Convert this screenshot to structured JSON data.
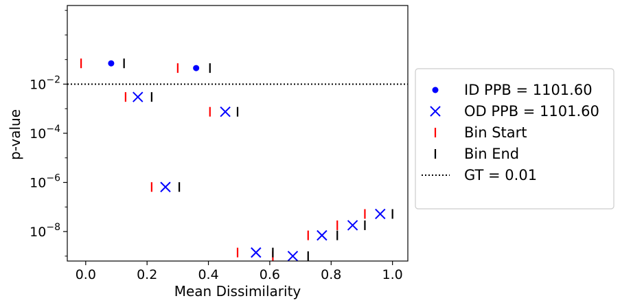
{
  "chart_data": {
    "type": "scatter",
    "title": "",
    "xlabel": "Mean Dissimilarity",
    "ylabel": "p-value",
    "xlim": [
      -0.06,
      1.05
    ],
    "ylim_log10": [
      -9.2,
      1.2
    ],
    "y_scale": "log",
    "x_ticks": [
      {
        "value": 0.0,
        "label": "0.0"
      },
      {
        "value": 0.2,
        "label": "0.2"
      },
      {
        "value": 0.4,
        "label": "0.4"
      },
      {
        "value": 0.6,
        "label": "0.6"
      },
      {
        "value": 0.8,
        "label": "0.8"
      },
      {
        "value": 1.0,
        "label": "1.0"
      }
    ],
    "y_ticks": [
      {
        "exp": -2,
        "base": "10",
        "sup": "−2"
      },
      {
        "exp": -4,
        "base": "10",
        "sup": "−4"
      },
      {
        "exp": -6,
        "base": "10",
        "sup": "−6"
      },
      {
        "exp": -8,
        "base": "10",
        "sup": "−8"
      }
    ],
    "grid": false,
    "legend_position": "right",
    "series": [
      {
        "name": "ID PPB = 1101.60",
        "marker": "dot",
        "color": "#0000ff",
        "points": [
          {
            "x": 0.083,
            "y": 0.07
          },
          {
            "x": 0.36,
            "y": 0.045
          }
        ]
      },
      {
        "name": "OD PPB = 1101.60",
        "marker": "x",
        "color": "#0000ff",
        "points": [
          {
            "x": 0.17,
            "y": 0.003
          },
          {
            "x": 0.455,
            "y": 0.00075
          },
          {
            "x": 0.26,
            "y": 6.5e-07
          },
          {
            "x": 0.555,
            "y": 1.4e-09
          },
          {
            "x": 0.675,
            "y": 1e-09
          },
          {
            "x": 0.77,
            "y": 7e-09
          },
          {
            "x": 0.87,
            "y": 1.8e-08
          },
          {
            "x": 0.96,
            "y": 5.2e-08
          }
        ]
      },
      {
        "name": "Bin Start",
        "marker": "vline",
        "color": "#ff0000",
        "points": [
          {
            "x": -0.015,
            "y": 0.07
          },
          {
            "x": 0.3,
            "y": 0.045
          },
          {
            "x": 0.13,
            "y": 0.003
          },
          {
            "x": 0.405,
            "y": 0.00075
          },
          {
            "x": 0.215,
            "y": 6.5e-07
          },
          {
            "x": 0.495,
            "y": 1.4e-09
          },
          {
            "x": 0.61,
            "y": 1e-09
          },
          {
            "x": 0.725,
            "y": 7e-09
          },
          {
            "x": 0.82,
            "y": 1.8e-08
          },
          {
            "x": 0.91,
            "y": 5.2e-08
          }
        ]
      },
      {
        "name": "Bin End",
        "marker": "vline",
        "color": "#000000",
        "points": [
          {
            "x": 0.125,
            "y": 0.07
          },
          {
            "x": 0.405,
            "y": 0.045
          },
          {
            "x": 0.215,
            "y": 0.003
          },
          {
            "x": 0.495,
            "y": 0.00075
          },
          {
            "x": 0.305,
            "y": 6.5e-07
          },
          {
            "x": 0.61,
            "y": 1.4e-09
          },
          {
            "x": 0.725,
            "y": 1e-09
          },
          {
            "x": 0.82,
            "y": 7e-09
          },
          {
            "x": 0.91,
            "y": 1.8e-08
          },
          {
            "x": 1.0,
            "y": 5.2e-08
          }
        ]
      }
    ],
    "reference_line": {
      "name": "GT = 0.01",
      "y": 0.01,
      "style": "dotted",
      "color": "#000000"
    }
  }
}
